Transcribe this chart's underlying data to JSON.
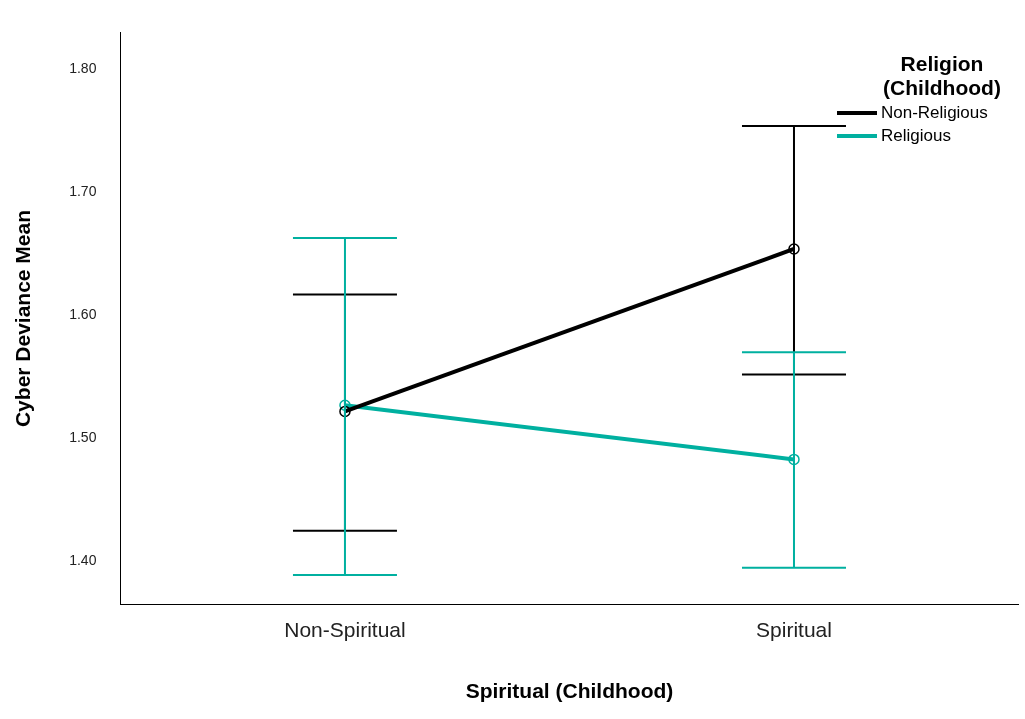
{
  "chart_data": {
    "type": "line",
    "xlabel": "Spiritual (Childhood)",
    "ylabel": "Cyber Deviance Mean",
    "legend_title": "Religion (Childhood)",
    "legend": "top right",
    "grid": false,
    "marker": "circle",
    "line_style": "solid",
    "categories": [
      "Non-Spiritual",
      "Spiritual"
    ],
    "ylim": [
      1.365,
      1.83
    ],
    "yticks": [
      {
        "value": 1.4,
        "label": "1.40"
      },
      {
        "value": 1.5,
        "label": "1.50"
      },
      {
        "value": 1.6,
        "label": "1.60"
      },
      {
        "value": 1.7,
        "label": "1.70"
      },
      {
        "value": 1.8,
        "label": "1.80"
      }
    ],
    "series": [
      {
        "name": "Non-Religious",
        "color": "#000000",
        "values": [
          1.522,
          1.654
        ],
        "errors": [
          [
            1.425,
            1.617
          ],
          [
            1.552,
            1.754
          ]
        ]
      },
      {
        "name": "Religious",
        "color": "#00b0a0",
        "values": [
          1.527,
          1.483
        ],
        "errors": [
          [
            1.389,
            1.663
          ],
          [
            1.395,
            1.57
          ]
        ]
      }
    ]
  }
}
